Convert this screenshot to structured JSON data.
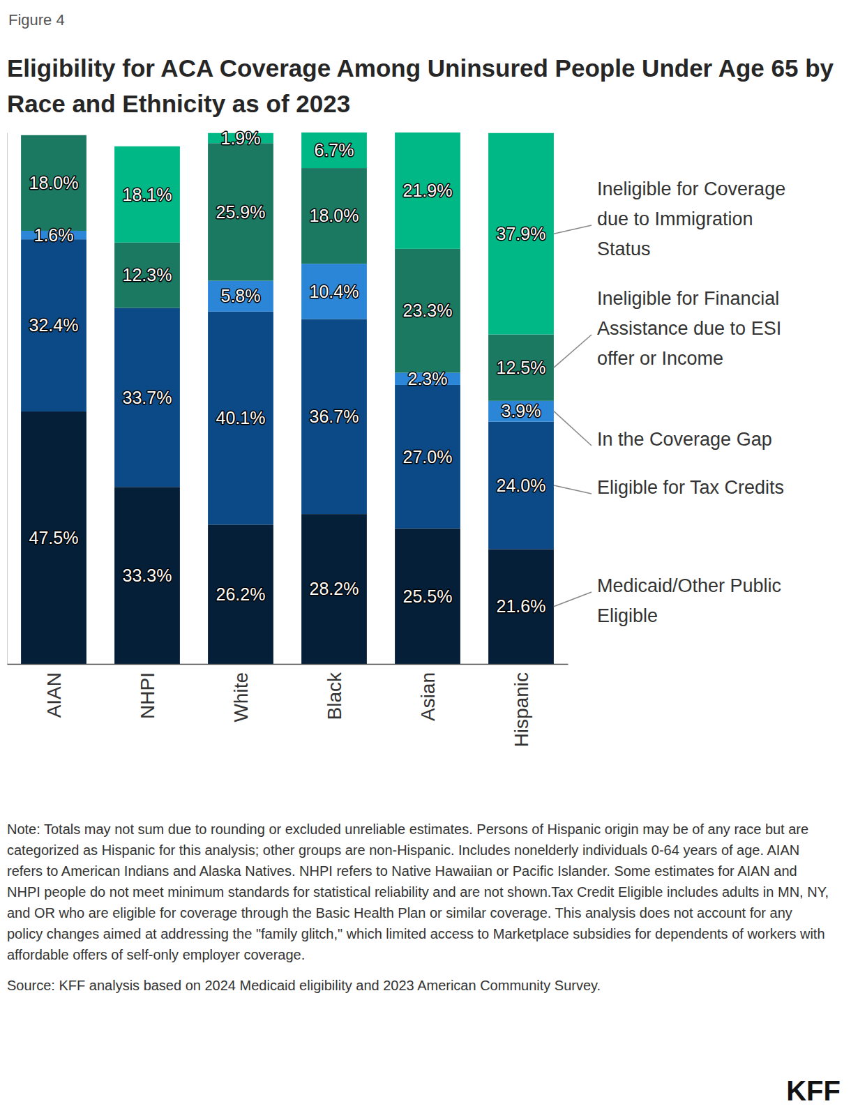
{
  "chart_data": {
    "type": "bar",
    "figure_label": "Figure 4",
    "title": "Eligibility for ACA Coverage Among Uninsured People Under Age 65 by Race and Ethnicity as of 2023",
    "categories": [
      "AIAN",
      "NHPI",
      "White",
      "Black",
      "Asian",
      "Hispanic"
    ],
    "series": [
      {
        "name": "Medicaid/Other Public Eligible",
        "color": "#051f38",
        "values": [
          47.5,
          33.3,
          26.2,
          28.2,
          25.5,
          21.6
        ],
        "value_labels": [
          "47.5%",
          "33.3%",
          "26.2%",
          "28.2%",
          "25.5%",
          "21.6%"
        ]
      },
      {
        "name": "Eligible for Tax Credits",
        "color": "#0c4a87",
        "values": [
          32.4,
          33.7,
          40.1,
          36.7,
          27.0,
          24.0
        ],
        "value_labels": [
          "32.4%",
          "33.7%",
          "40.1%",
          "36.7%",
          "27.0%",
          "24.0%"
        ]
      },
      {
        "name": "In the Coverage Gap",
        "color": "#2b86d8",
        "values": [
          1.6,
          null,
          5.8,
          10.4,
          2.3,
          3.9
        ],
        "value_labels": [
          "1.6%",
          null,
          "5.8%",
          "10.4%",
          "2.3%",
          "3.9%"
        ]
      },
      {
        "name": "Ineligible for Financial Assistance due to ESI offer or Income",
        "color": "#1b7861",
        "values": [
          18.0,
          12.3,
          25.9,
          18.0,
          23.3,
          12.5
        ],
        "value_labels": [
          "18.0%",
          "12.3%",
          "25.9%",
          "18.0%",
          "23.3%",
          "12.5%"
        ]
      },
      {
        "name": "Ineligible for Coverage due to Immigration Status",
        "color": "#00b886",
        "values": [
          null,
          18.1,
          1.9,
          6.7,
          21.9,
          37.9
        ],
        "value_labels": [
          null,
          "18.1%",
          "1.9%",
          "6.7%",
          "21.9%",
          "37.9%"
        ]
      }
    ],
    "ylim": [
      0,
      100
    ],
    "stacked": true,
    "data_labels": true,
    "tick_labels": "x",
    "legend": "right",
    "note": "Note: Totals may not sum due to rounding or excluded unreliable estimates. Persons of Hispanic origin may be of any race but are categorized as Hispanic for this analysis; other groups are non-Hispanic. Includes nonelderly individuals 0-64 years of age. AIAN refers to American Indians and Alaska Natives. NHPI refers to Native Hawaiian or Pacific Islander. Some estimates for AIAN and NHPI people do not meet minimum standards for statistical reliability and are not shown.Tax Credit Eligible includes adults in MN, NY, and OR who are eligible for coverage through the Basic Health Plan or similar coverage. This analysis does not account for any policy changes aimed at addressing the \"family glitch,\" which limited access to Marketplace subsidies for dependents of workers with affordable offers of self-only employer coverage.",
    "source": "Source: KFF analysis based on 2024 Medicaid eligibility and 2023 American Community Survey.",
    "branding": "KFF"
  }
}
